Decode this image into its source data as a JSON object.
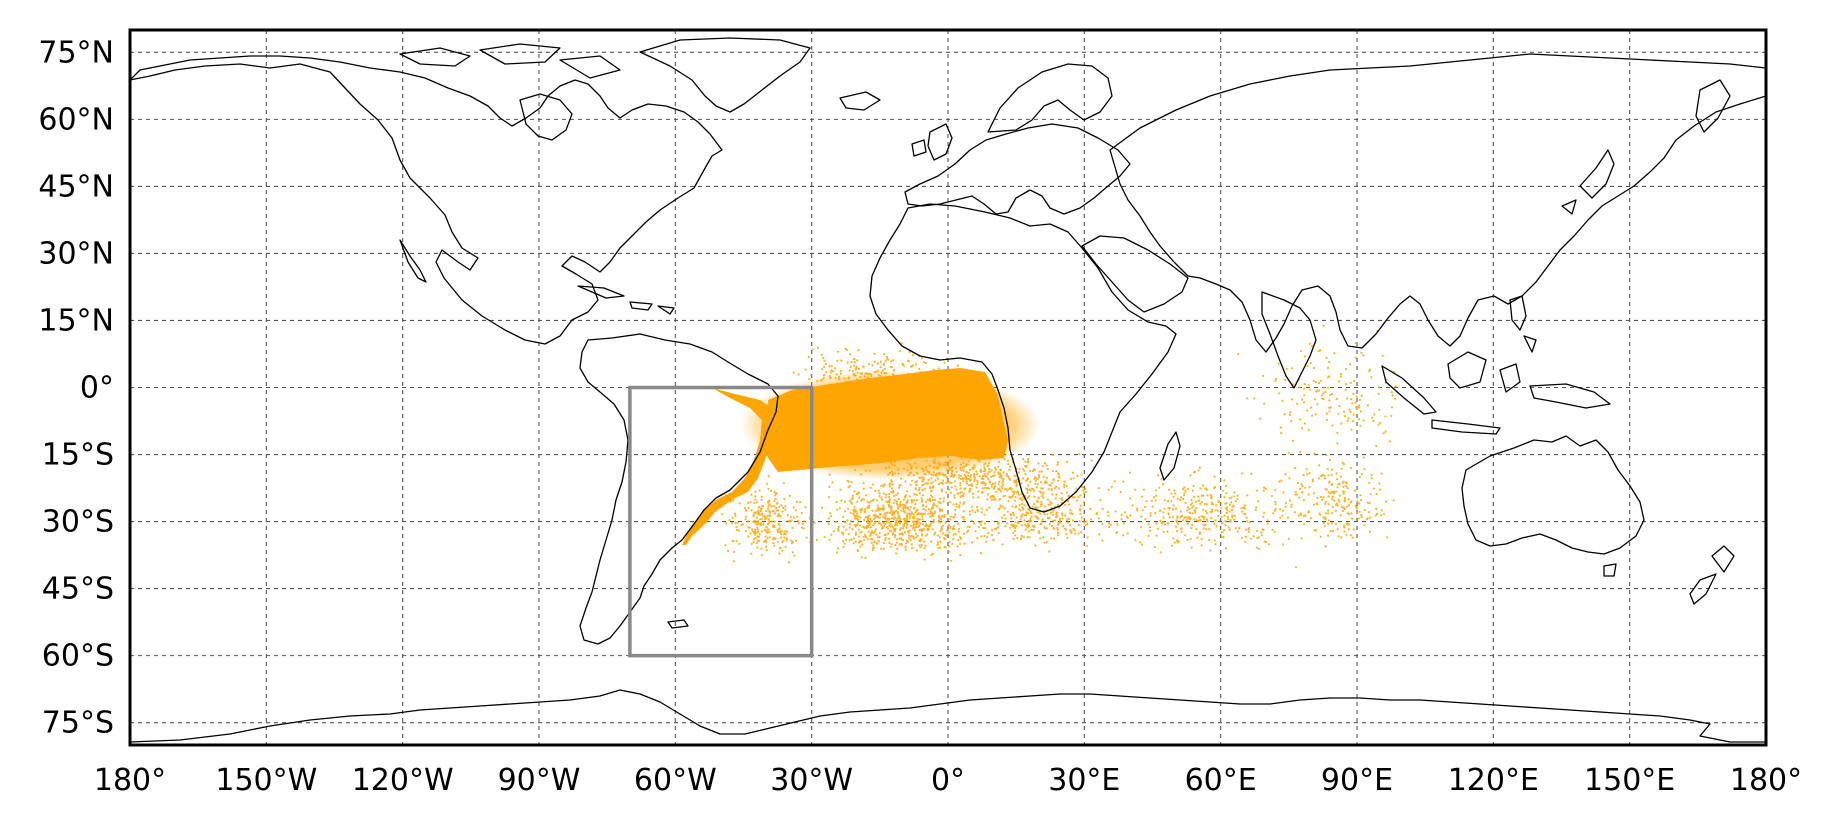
{
  "map": {
    "projection": "equirectangular",
    "lon_range": [
      -180,
      180
    ],
    "lat_range": [
      -80,
      80
    ],
    "grid": true,
    "x_ticks": [
      {
        "lon": -180,
        "label": "180°"
      },
      {
        "lon": -150,
        "label": "150°W"
      },
      {
        "lon": -120,
        "label": "120°W"
      },
      {
        "lon": -90,
        "label": "90°W"
      },
      {
        "lon": -60,
        "label": "60°W"
      },
      {
        "lon": -30,
        "label": "30°W"
      },
      {
        "lon": 0,
        "label": "0°"
      },
      {
        "lon": 30,
        "label": "30°E"
      },
      {
        "lon": 60,
        "label": "60°E"
      },
      {
        "lon": 90,
        "label": "90°E"
      },
      {
        "lon": 120,
        "label": "120°E"
      },
      {
        "lon": 150,
        "label": "150°E"
      },
      {
        "lon": 180,
        "label": "180°"
      }
    ],
    "y_ticks": [
      {
        "lat": 75,
        "label": "75°N"
      },
      {
        "lat": 60,
        "label": "60°N"
      },
      {
        "lat": 45,
        "label": "45°N"
      },
      {
        "lat": 30,
        "label": "30°N"
      },
      {
        "lat": 15,
        "label": "15°N"
      },
      {
        "lat": 0,
        "label": "0°"
      },
      {
        "lat": -15,
        "label": "15°S"
      },
      {
        "lat": -30,
        "label": "30°S"
      },
      {
        "lat": -45,
        "label": "45°S"
      },
      {
        "lat": -60,
        "label": "60°S"
      },
      {
        "lat": -75,
        "label": "75°S"
      }
    ],
    "release_region": {
      "lon_min": -70,
      "lon_max": -30,
      "lat_min": -60,
      "lat_max": 0,
      "color": "#888888"
    },
    "particle_color": "#ffa500",
    "dense_plume": {
      "lon_min": -32,
      "lon_max": 12,
      "lat_min": -18,
      "lat_max": -2
    },
    "sparse_spread": {
      "lon_min": -52,
      "lon_max": 100,
      "lat_min": -42,
      "lat_max": 15
    }
  }
}
